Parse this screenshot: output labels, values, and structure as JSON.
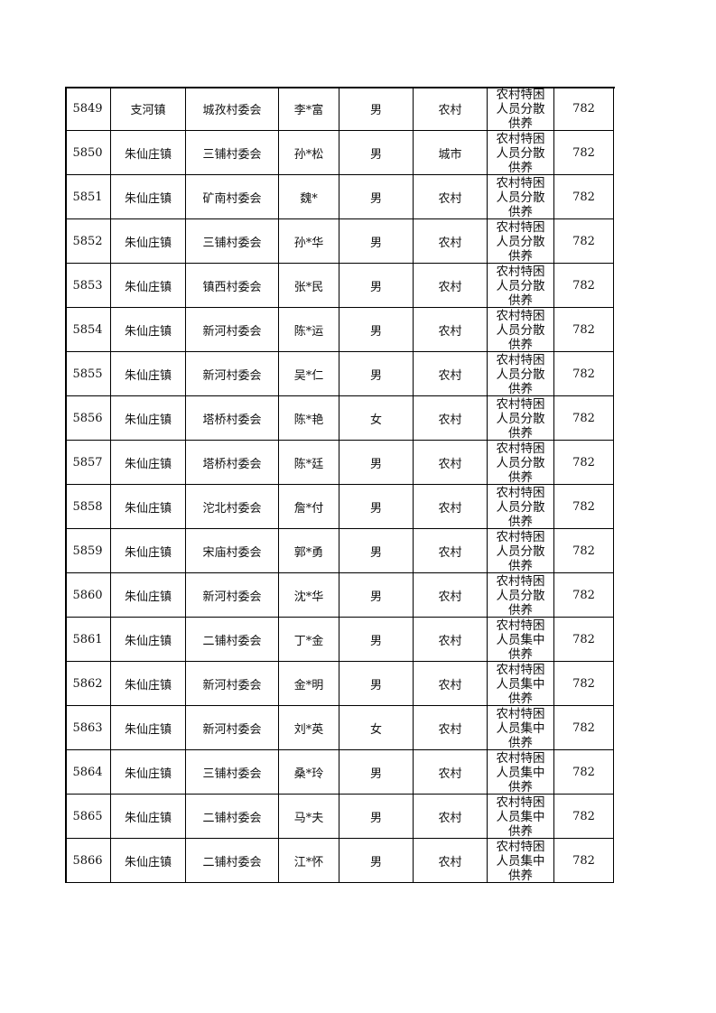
{
  "table": {
    "rows": [
      [
        "5849",
        "支河镇",
        "城孜村委会",
        "李*富",
        "男",
        "农村",
        "农村特困人员分散供养",
        "782"
      ],
      [
        "5850",
        "朱仙庄镇",
        "三铺村委会",
        "孙*松",
        "男",
        "城市",
        "农村特困人员分散供养",
        "782"
      ],
      [
        "5851",
        "朱仙庄镇",
        "矿南村委会",
        "魏*",
        "男",
        "农村",
        "农村特困人员分散供养",
        "782"
      ],
      [
        "5852",
        "朱仙庄镇",
        "三铺村委会",
        "孙*华",
        "男",
        "农村",
        "农村特困人员分散供养",
        "782"
      ],
      [
        "5853",
        "朱仙庄镇",
        "镇西村委会",
        "张*民",
        "男",
        "农村",
        "农村特困人员分散供养",
        "782"
      ],
      [
        "5854",
        "朱仙庄镇",
        "新河村委会",
        "陈*运",
        "男",
        "农村",
        "农村特困人员分散供养",
        "782"
      ],
      [
        "5855",
        "朱仙庄镇",
        "新河村委会",
        "吴*仁",
        "男",
        "农村",
        "农村特困人员分散供养",
        "782"
      ],
      [
        "5856",
        "朱仙庄镇",
        "塔桥村委会",
        "陈*艳",
        "女",
        "农村",
        "农村特困人员分散供养",
        "782"
      ],
      [
        "5857",
        "朱仙庄镇",
        "塔桥村委会",
        "陈*廷",
        "男",
        "农村",
        "农村特困人员分散供养",
        "782"
      ],
      [
        "5858",
        "朱仙庄镇",
        "沱北村委会",
        "詹*付",
        "男",
        "农村",
        "农村特困人员分散供养",
        "782"
      ],
      [
        "5859",
        "朱仙庄镇",
        "宋庙村委会",
        "郭*勇",
        "男",
        "农村",
        "农村特困人员分散供养",
        "782"
      ],
      [
        "5860",
        "朱仙庄镇",
        "新河村委会",
        "沈*华",
        "男",
        "农村",
        "农村特困人员分散供养",
        "782"
      ],
      [
        "5861",
        "朱仙庄镇",
        "二铺村委会",
        "丁*金",
        "男",
        "农村",
        "农村特困人员集中供养",
        "782"
      ],
      [
        "5862",
        "朱仙庄镇",
        "新河村委会",
        "金*明",
        "男",
        "农村",
        "农村特困人员集中供养",
        "782"
      ],
      [
        "5863",
        "朱仙庄镇",
        "新河村委会",
        "刘*英",
        "女",
        "农村",
        "农村特困人员集中供养",
        "782"
      ],
      [
        "5864",
        "朱仙庄镇",
        "三铺村委会",
        "桑*玲",
        "男",
        "农村",
        "农村特困人员集中供养",
        "782"
      ],
      [
        "5865",
        "朱仙庄镇",
        "二铺村委会",
        "马*夫",
        "男",
        "农村",
        "农村特困人员集中供养",
        "782"
      ],
      [
        "5866",
        "朱仙庄镇",
        "二铺村委会",
        "江*怀",
        "男",
        "农村",
        "农村特困人员集中供养",
        "782"
      ]
    ]
  }
}
